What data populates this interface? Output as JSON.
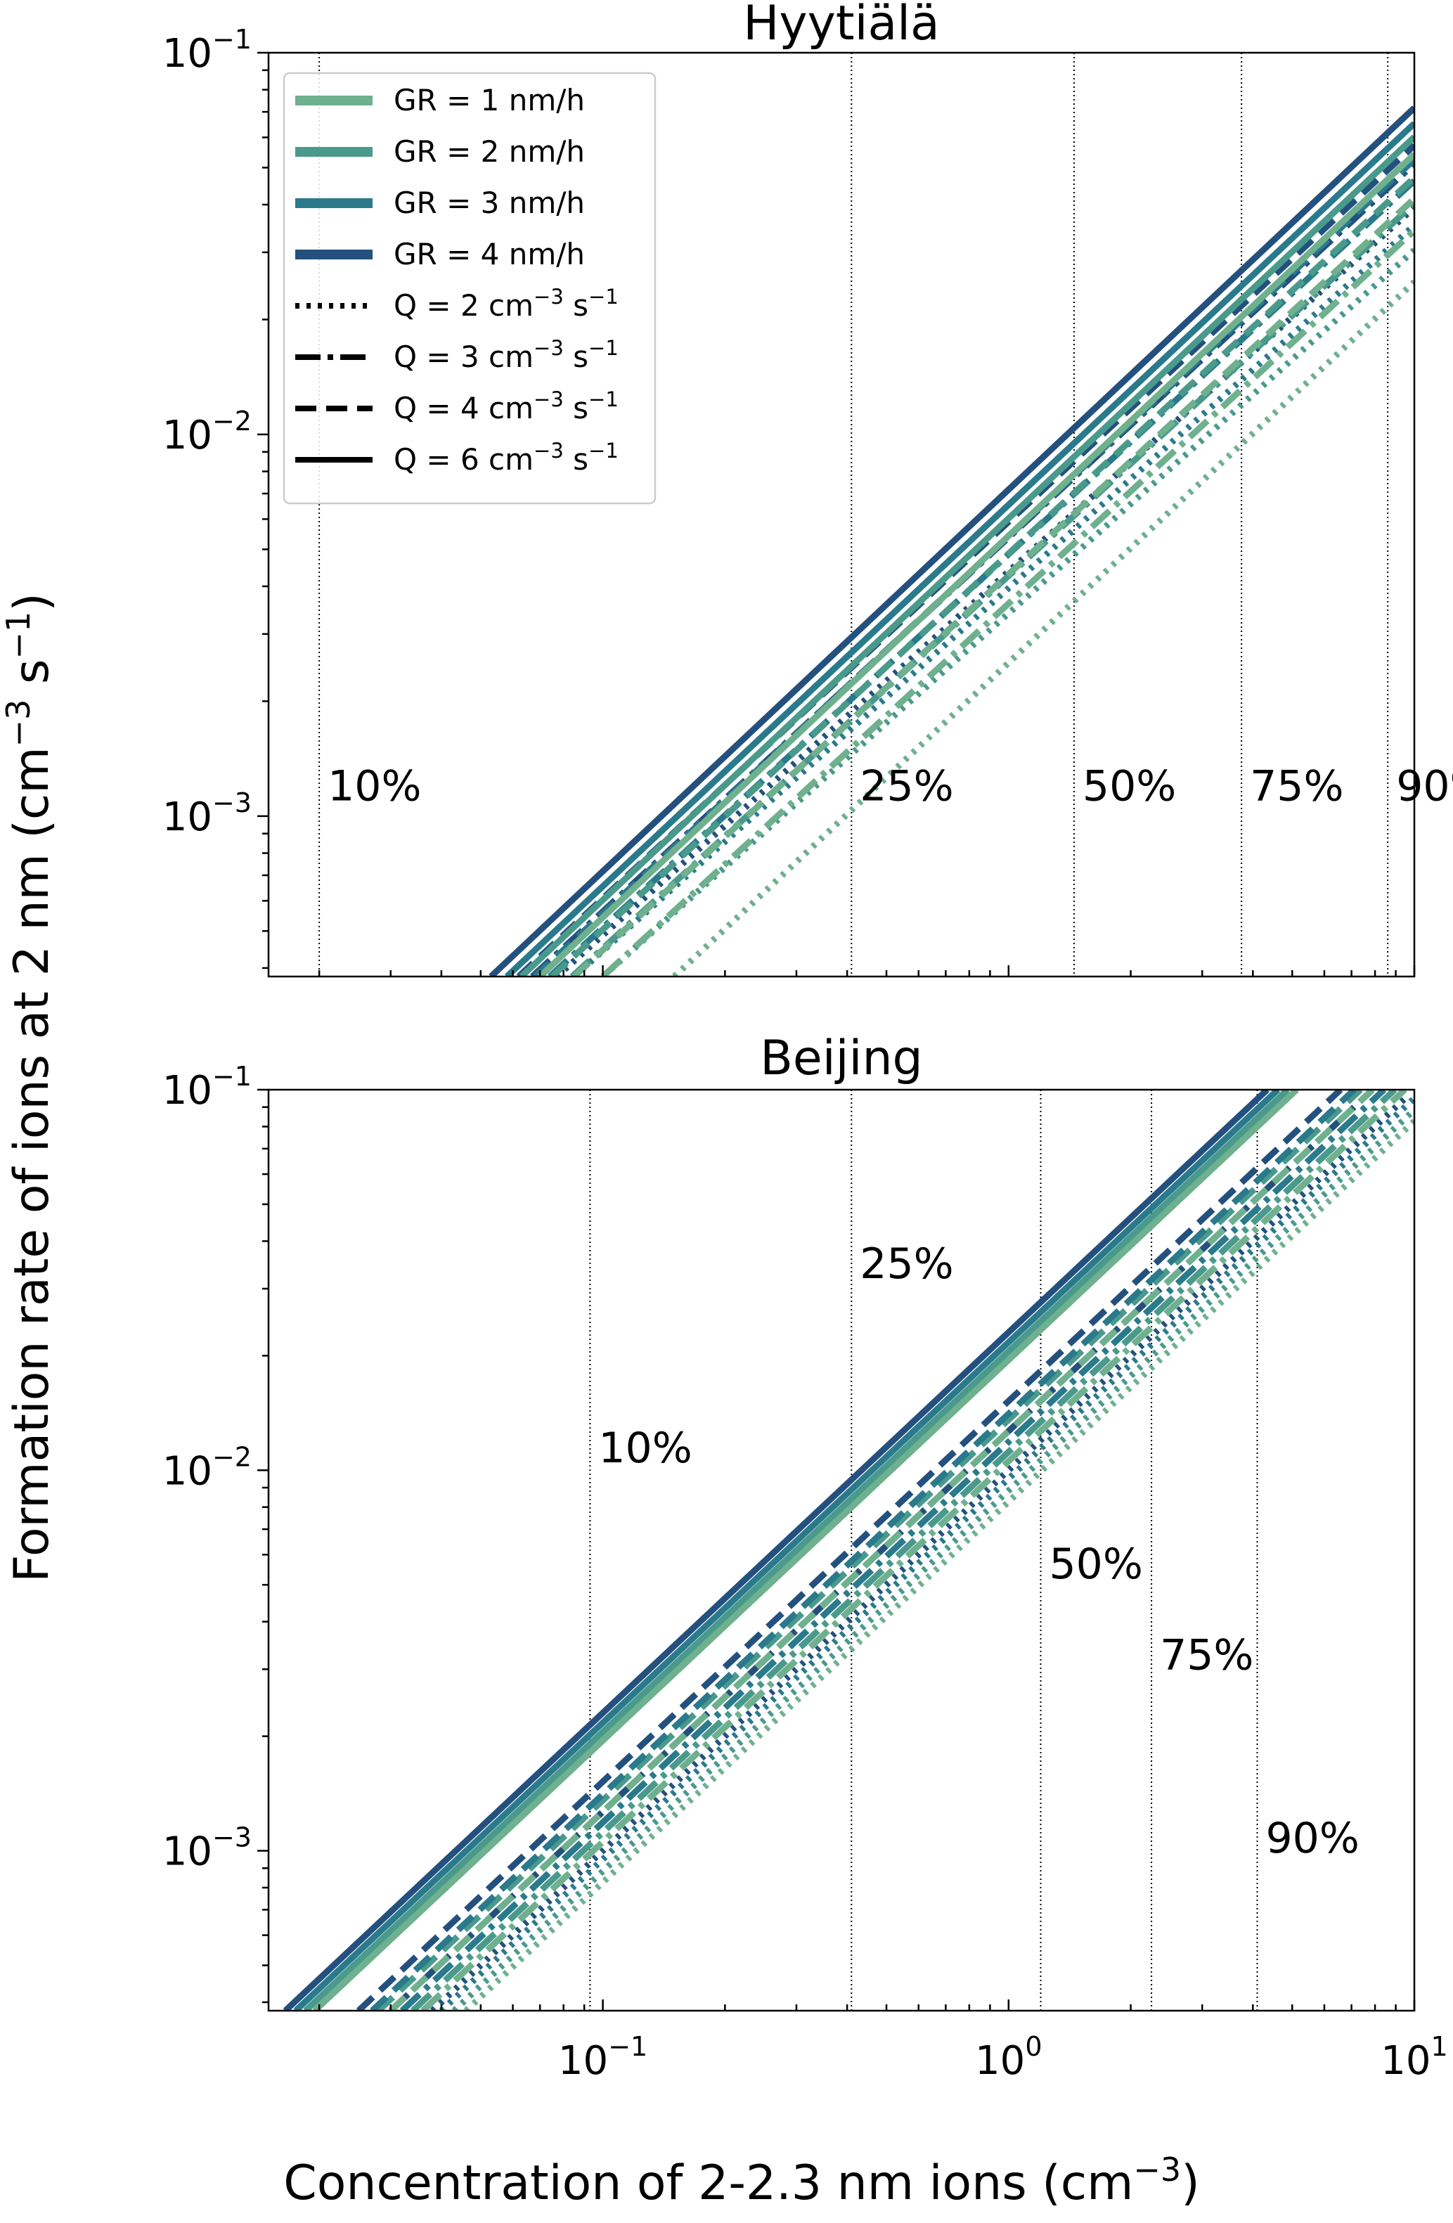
{
  "figure": {
    "ylabel_main": "Formation rate of ions at 2 nm (cm",
    "ylabel_exp1": "−3",
    "ylabel_mid": " s",
    "ylabel_exp2": "−1",
    "ylabel_end": ")",
    "xlabel_main": "Concentration of 2-2.3 nm ions (cm",
    "xlabel_exp": "−3",
    "xlabel_end": ")"
  },
  "legend": {
    "gr": [
      {
        "label": "GR = 1 nm/h",
        "color": "#6fb08e"
      },
      {
        "label": "GR = 2 nm/h",
        "color": "#4a9a8c"
      },
      {
        "label": "GR = 3 nm/h",
        "color": "#2a7a8c"
      },
      {
        "label": "GR = 4 nm/h",
        "color": "#24507e"
      }
    ],
    "q": [
      {
        "pre": "Q = 2 cm",
        "exp": "−3",
        "post": " s",
        "exp2": "−1",
        "style": "dotted"
      },
      {
        "pre": "Q = 3 cm",
        "exp": "−3",
        "post": " s",
        "exp2": "−1",
        "style": "dashdot"
      },
      {
        "pre": "Q = 4 cm",
        "exp": "−3",
        "post": " s",
        "exp2": "−1",
        "style": "dashed"
      },
      {
        "pre": "Q = 6 cm",
        "exp": "−3",
        "post": " s",
        "exp2": "−1",
        "style": "solid"
      }
    ]
  },
  "x_ticks": [
    {
      "value": 0.1,
      "base": "10",
      "exp": "−1"
    },
    {
      "value": 1,
      "base": "10",
      "exp": "0"
    },
    {
      "value": 10,
      "base": "10",
      "exp": "1"
    }
  ],
  "y_ticks": [
    {
      "value": 0.1,
      "base": "10",
      "exp": "−1"
    },
    {
      "value": 0.01,
      "base": "10",
      "exp": "−2"
    },
    {
      "value": 0.001,
      "base": "10",
      "exp": "−3"
    }
  ],
  "chart_data": [
    {
      "type": "line",
      "title": "Hyytiälä",
      "xscale": "log",
      "yscale": "log",
      "xlim": [
        0.015,
        10
      ],
      "ylim": [
        0.00038,
        0.1
      ],
      "percentiles": [
        {
          "label": "10%",
          "x": 0.02,
          "label_y": 0.0011
        },
        {
          "label": "25%",
          "x": 0.41,
          "label_y": 0.0011
        },
        {
          "label": "50%",
          "x": 1.45,
          "label_y": 0.0011
        },
        {
          "label": "75%",
          "x": 3.75,
          "label_y": 0.0011
        },
        {
          "label": "90%",
          "x": 8.6,
          "label_y": 0.0011
        }
      ],
      "series": [
        {
          "name": "GR = 1 nm/h, Q = 2",
          "gr": 1,
          "q": 2,
          "x": [
            0.15,
            10
          ],
          "y": [
            0.00038,
            0.0251
          ]
        },
        {
          "name": "GR = 2 nm/h, Q = 2",
          "gr": 2,
          "q": 2,
          "x": [
            0.1,
            10
          ],
          "y": [
            0.00038,
            0.0304
          ]
        },
        {
          "name": "GR = 3 nm/h, Q = 2",
          "gr": 3,
          "q": 2,
          "x": [
            0.085,
            10
          ],
          "y": [
            0.00038,
            0.0353
          ]
        },
        {
          "name": "GR = 4 nm/h, Q = 2",
          "gr": 4,
          "q": 2,
          "x": [
            0.077,
            10
          ],
          "y": [
            0.00038,
            0.0393
          ]
        },
        {
          "name": "GR = 1 nm/h, Q = 3",
          "gr": 1,
          "q": 3,
          "x": [
            0.1,
            10
          ],
          "y": [
            0.00038,
            0.0342
          ]
        },
        {
          "name": "GR = 2 nm/h, Q = 3",
          "gr": 2,
          "q": 3,
          "x": [
            0.084,
            10
          ],
          "y": [
            0.00038,
            0.0403
          ]
        },
        {
          "name": "GR = 3 nm/h, Q = 3",
          "gr": 3,
          "q": 3,
          "x": [
            0.074,
            10
          ],
          "y": [
            0.00038,
            0.0462
          ]
        },
        {
          "name": "GR = 4 nm/h, Q = 3",
          "gr": 4,
          "q": 3,
          "x": [
            0.067,
            10
          ],
          "y": [
            0.00038,
            0.0512
          ]
        },
        {
          "name": "GR = 1 nm/h, Q = 4",
          "gr": 1,
          "q": 4,
          "x": [
            0.085,
            10
          ],
          "y": [
            0.00038,
            0.0415
          ]
        },
        {
          "name": "GR = 2 nm/h, Q = 4",
          "gr": 2,
          "q": 4,
          "x": [
            0.075,
            10
          ],
          "y": [
            0.00038,
            0.0471
          ]
        },
        {
          "name": "GR = 3 nm/h, Q = 4",
          "gr": 3,
          "q": 4,
          "x": [
            0.068,
            10
          ],
          "y": [
            0.00038,
            0.0525
          ]
        },
        {
          "name": "GR = 4 nm/h, Q = 4",
          "gr": 4,
          "q": 4,
          "x": [
            0.062,
            10
          ],
          "y": [
            0.00038,
            0.0572
          ]
        },
        {
          "name": "GR = 1 nm/h, Q = 6",
          "gr": 1,
          "q": 6,
          "x": [
            0.07,
            10
          ],
          "y": [
            0.00038,
            0.0542
          ]
        },
        {
          "name": "GR = 2 nm/h, Q = 6",
          "gr": 2,
          "q": 6,
          "x": [
            0.063,
            10
          ],
          "y": [
            0.00038,
            0.0602
          ]
        },
        {
          "name": "GR = 3 nm/h, Q = 6",
          "gr": 3,
          "q": 6,
          "x": [
            0.058,
            10
          ],
          "y": [
            0.00038,
            0.0653
          ]
        },
        {
          "name": "GR = 4 nm/h, Q = 6",
          "gr": 4,
          "q": 6,
          "x": [
            0.053,
            10
          ],
          "y": [
            0.00038,
            0.0717
          ]
        }
      ]
    },
    {
      "type": "line",
      "title": "Beijing",
      "xscale": "log",
      "yscale": "log",
      "xlim": [
        0.015,
        10
      ],
      "ylim": [
        0.00038,
        0.1
      ],
      "percentiles": [
        {
          "label": "10%",
          "x": 0.093,
          "label_y": 0.0105
        },
        {
          "label": "25%",
          "x": 0.41,
          "label_y": 0.032
        },
        {
          "label": "50%",
          "x": 1.2,
          "label_y": 0.0052
        },
        {
          "label": "75%",
          "x": 2.25,
          "label_y": 0.003
        },
        {
          "label": "90%",
          "x": 4.1,
          "label_y": 0.00099
        }
      ],
      "series": [
        {
          "name": "GR = 1 nm/h, Q = 2",
          "gr": 1,
          "q": 2,
          "x": [
            0.046,
            10
          ],
          "y": [
            0.00038,
            0.0827
          ]
        },
        {
          "name": "GR = 2 nm/h, Q = 2",
          "gr": 2,
          "q": 2,
          "x": [
            0.043,
            10
          ],
          "y": [
            0.00038,
            0.0885
          ]
        },
        {
          "name": "GR = 3 nm/h, Q = 2",
          "gr": 3,
          "q": 2,
          "x": [
            0.04,
            10
          ],
          "y": [
            0.00038,
            0.095
          ]
        },
        {
          "name": "GR = 4 nm/h, Q = 2",
          "gr": 4,
          "q": 2,
          "x": [
            0.038,
            9.5
          ],
          "y": [
            0.00038,
            0.095
          ]
        },
        {
          "name": "GR = 1 nm/h, Q = 3",
          "gr": 1,
          "q": 3,
          "x": [
            0.036,
            9.47
          ],
          "y": [
            0.00038,
            0.1
          ]
        },
        {
          "name": "GR = 2 nm/h, Q = 3",
          "gr": 2,
          "q": 3,
          "x": [
            0.034,
            8.95
          ],
          "y": [
            0.00038,
            0.1
          ]
        },
        {
          "name": "GR = 3 nm/h, Q = 3",
          "gr": 3,
          "q": 3,
          "x": [
            0.032,
            8.42
          ],
          "y": [
            0.00038,
            0.1
          ]
        },
        {
          "name": "GR = 4 nm/h, Q = 3",
          "gr": 4,
          "q": 3,
          "x": [
            0.03,
            7.89
          ],
          "y": [
            0.00038,
            0.1
          ]
        },
        {
          "name": "GR = 1 nm/h, Q = 4",
          "gr": 1,
          "q": 4,
          "x": [
            0.03,
            7.89
          ],
          "y": [
            0.00038,
            0.1
          ]
        },
        {
          "name": "GR = 2 nm/h, Q = 4",
          "gr": 2,
          "q": 4,
          "x": [
            0.028,
            7.37
          ],
          "y": [
            0.00038,
            0.1
          ]
        },
        {
          "name": "GR = 3 nm/h, Q = 4",
          "gr": 3,
          "q": 4,
          "x": [
            0.027,
            7.11
          ],
          "y": [
            0.00038,
            0.1
          ]
        },
        {
          "name": "GR = 4 nm/h, Q = 4",
          "gr": 4,
          "q": 4,
          "x": [
            0.025,
            6.58
          ],
          "y": [
            0.00038,
            0.1
          ]
        },
        {
          "name": "GR = 1 nm/h, Q = 6",
          "gr": 1,
          "q": 6,
          "x": [
            0.0195,
            5.13
          ],
          "y": [
            0.00038,
            0.1
          ]
        },
        {
          "name": "GR = 2 nm/h, Q = 6",
          "gr": 2,
          "q": 6,
          "x": [
            0.0185,
            4.87
          ],
          "y": [
            0.00038,
            0.1
          ]
        },
        {
          "name": "GR = 3 nm/h, Q = 6",
          "gr": 3,
          "q": 6,
          "x": [
            0.0175,
            4.61
          ],
          "y": [
            0.00038,
            0.1
          ]
        },
        {
          "name": "GR = 4 nm/h, Q = 6",
          "gr": 4,
          "q": 6,
          "x": [
            0.0165,
            4.34
          ],
          "y": [
            0.00038,
            0.1
          ]
        }
      ]
    }
  ]
}
